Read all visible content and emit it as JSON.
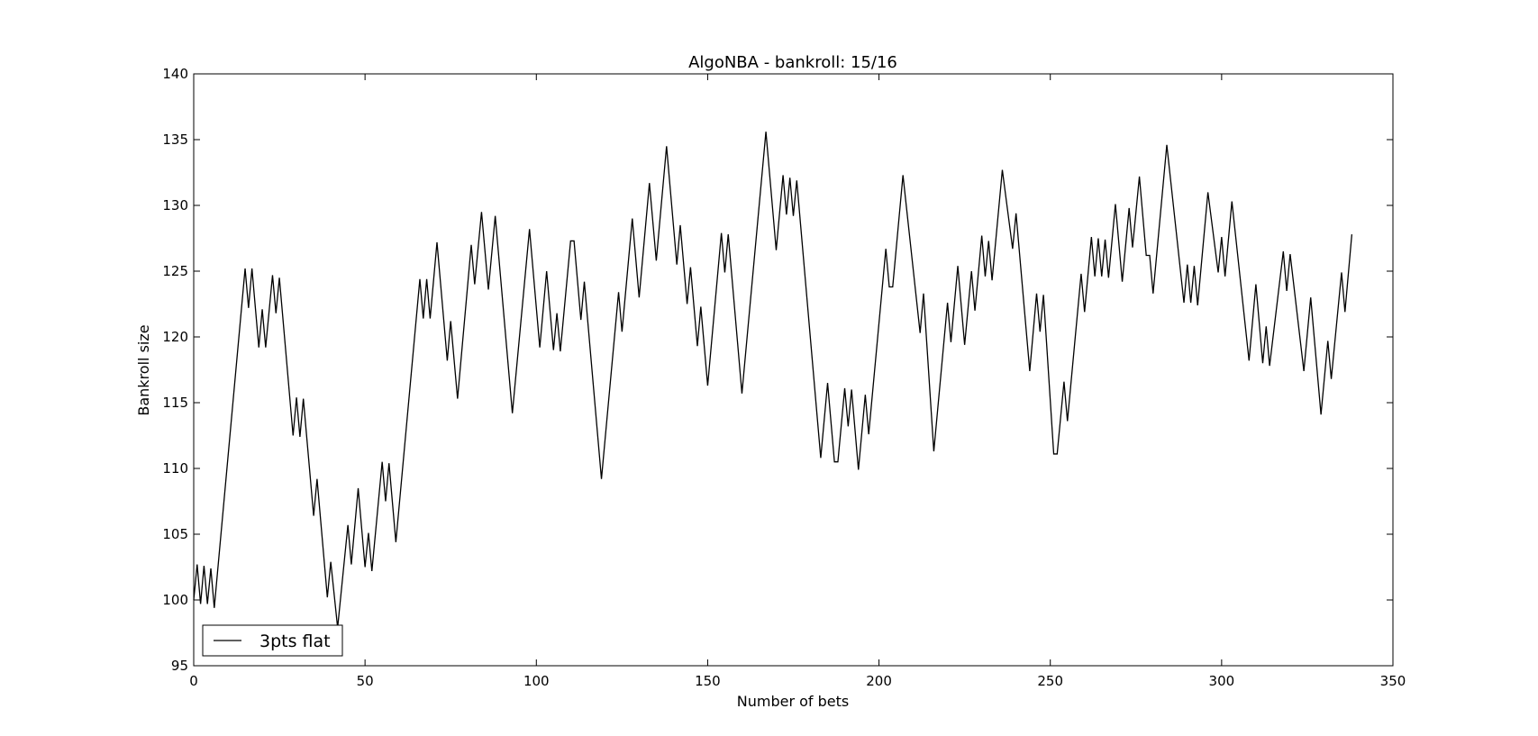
{
  "chart_data": {
    "type": "line",
    "title": "AlgoNBA - bankroll: 15/16",
    "xlabel": "Number of bets",
    "ylabel": "Bankroll size",
    "xlim": [
      0,
      350
    ],
    "ylim": [
      95,
      140
    ],
    "xticks": [
      0,
      50,
      100,
      150,
      200,
      250,
      300,
      350
    ],
    "yticks": [
      95,
      100,
      105,
      110,
      115,
      120,
      125,
      130,
      135,
      140
    ],
    "grid": false,
    "legend": {
      "placement": "lower-left"
    },
    "series": [
      {
        "name": "3pts flat",
        "color": "#000000",
        "points": [
          [
            0,
            100
          ],
          [
            1,
            102.7
          ],
          [
            2,
            99.7
          ],
          [
            3,
            102.6
          ],
          [
            4,
            99.7
          ],
          [
            5,
            102.4
          ],
          [
            6,
            99.4
          ],
          [
            15,
            125.2
          ],
          [
            16,
            122.2
          ],
          [
            17,
            125.2
          ],
          [
            19,
            119.2
          ],
          [
            20,
            122.1
          ],
          [
            21,
            119.2
          ],
          [
            23,
            124.7
          ],
          [
            24,
            121.8
          ],
          [
            25,
            124.5
          ],
          [
            29,
            112.5
          ],
          [
            30,
            115.4
          ],
          [
            31,
            112.4
          ],
          [
            32,
            115.3
          ],
          [
            35,
            106.4
          ],
          [
            36,
            109.2
          ],
          [
            39,
            100.2
          ],
          [
            40,
            102.9
          ],
          [
            42,
            97.9
          ],
          [
            45,
            105.7
          ],
          [
            46,
            102.7
          ],
          [
            48,
            108.5
          ],
          [
            50,
            102.5
          ],
          [
            51,
            105.1
          ],
          [
            52,
            102.2
          ],
          [
            55,
            110.5
          ],
          [
            56,
            107.5
          ],
          [
            57,
            110.4
          ],
          [
            59,
            104.4
          ],
          [
            66,
            124.4
          ],
          [
            67,
            121.4
          ],
          [
            68,
            124.4
          ],
          [
            69,
            121.4
          ],
          [
            71,
            127.2
          ],
          [
            74,
            118.2
          ],
          [
            75,
            121.2
          ],
          [
            77,
            115.3
          ],
          [
            81,
            127
          ],
          [
            82,
            124
          ],
          [
            84,
            129.5
          ],
          [
            86,
            123.6
          ],
          [
            88,
            129.2
          ],
          [
            93,
            114.2
          ],
          [
            98,
            128.2
          ],
          [
            101,
            119.2
          ],
          [
            103,
            125
          ],
          [
            105,
            119
          ],
          [
            106,
            121.8
          ],
          [
            107,
            118.9
          ],
          [
            110,
            127.3
          ],
          [
            111,
            127.3
          ],
          [
            113,
            121.3
          ],
          [
            114,
            124.2
          ],
          [
            119,
            109.2
          ],
          [
            124,
            123.4
          ],
          [
            125,
            120.4
          ],
          [
            128,
            129
          ],
          [
            130,
            123
          ],
          [
            133,
            131.7
          ],
          [
            135,
            125.8
          ],
          [
            138,
            134.5
          ],
          [
            141,
            125.5
          ],
          [
            142,
            128.5
          ],
          [
            144,
            122.5
          ],
          [
            145,
            125.3
          ],
          [
            147,
            119.3
          ],
          [
            148,
            122.3
          ],
          [
            150,
            116.3
          ],
          [
            154,
            127.9
          ],
          [
            155,
            124.9
          ],
          [
            156,
            127.8
          ],
          [
            160,
            115.7
          ],
          [
            167,
            135.6
          ],
          [
            170,
            126.6
          ],
          [
            172,
            132.3
          ],
          [
            173,
            129.3
          ],
          [
            174,
            132.1
          ],
          [
            175,
            129.2
          ],
          [
            176,
            131.9
          ],
          [
            183,
            110.8
          ],
          [
            185,
            116.5
          ],
          [
            187,
            110.5
          ],
          [
            188,
            110.5
          ],
          [
            190,
            116.1
          ],
          [
            191,
            113.2
          ],
          [
            192,
            116
          ],
          [
            194,
            109.9
          ],
          [
            196,
            115.6
          ],
          [
            197,
            112.6
          ],
          [
            202,
            126.7
          ],
          [
            203,
            123.8
          ],
          [
            204,
            123.8
          ],
          [
            207,
            132.3
          ],
          [
            212,
            120.3
          ],
          [
            213,
            123.3
          ],
          [
            216,
            111.3
          ],
          [
            220,
            122.6
          ],
          [
            221,
            119.6
          ],
          [
            223,
            125.4
          ],
          [
            225,
            119.4
          ],
          [
            227,
            125
          ],
          [
            228,
            122
          ],
          [
            230,
            127.7
          ],
          [
            231,
            124.6
          ],
          [
            232,
            127.3
          ],
          [
            233,
            124.3
          ],
          [
            236,
            132.7
          ],
          [
            239,
            126.7
          ],
          [
            240,
            129.4
          ],
          [
            244,
            117.4
          ],
          [
            246,
            123.3
          ],
          [
            247,
            120.4
          ],
          [
            248,
            123.2
          ],
          [
            251,
            111.1
          ],
          [
            252,
            111.1
          ],
          [
            254,
            116.6
          ],
          [
            255,
            113.6
          ],
          [
            259,
            124.8
          ],
          [
            260,
            121.9
          ],
          [
            262,
            127.6
          ],
          [
            263,
            124.6
          ],
          [
            264,
            127.5
          ],
          [
            265,
            124.6
          ],
          [
            266,
            127.4
          ],
          [
            267,
            124.5
          ],
          [
            269,
            130.1
          ],
          [
            271,
            124.2
          ],
          [
            273,
            129.8
          ],
          [
            274,
            126.8
          ],
          [
            276,
            132.2
          ],
          [
            278,
            126.2
          ],
          [
            279,
            126.2
          ],
          [
            280,
            123.3
          ],
          [
            284,
            134.6
          ],
          [
            289,
            122.6
          ],
          [
            290,
            125.5
          ],
          [
            291,
            122.6
          ],
          [
            292,
            125.4
          ],
          [
            293,
            122.4
          ],
          [
            296,
            131
          ],
          [
            299,
            124.9
          ],
          [
            300,
            127.6
          ],
          [
            301,
            124.6
          ],
          [
            303,
            130.3
          ],
          [
            308,
            118.2
          ],
          [
            310,
            124
          ],
          [
            312,
            118
          ],
          [
            313,
            120.8
          ],
          [
            314,
            117.8
          ],
          [
            318,
            126.5
          ],
          [
            319,
            123.5
          ],
          [
            320,
            126.3
          ],
          [
            324,
            117.4
          ],
          [
            326,
            123
          ],
          [
            329,
            114.1
          ],
          [
            331,
            119.7
          ],
          [
            332,
            116.8
          ],
          [
            335,
            124.9
          ],
          [
            336,
            121.9
          ],
          [
            338,
            127.8
          ]
        ]
      }
    ]
  }
}
